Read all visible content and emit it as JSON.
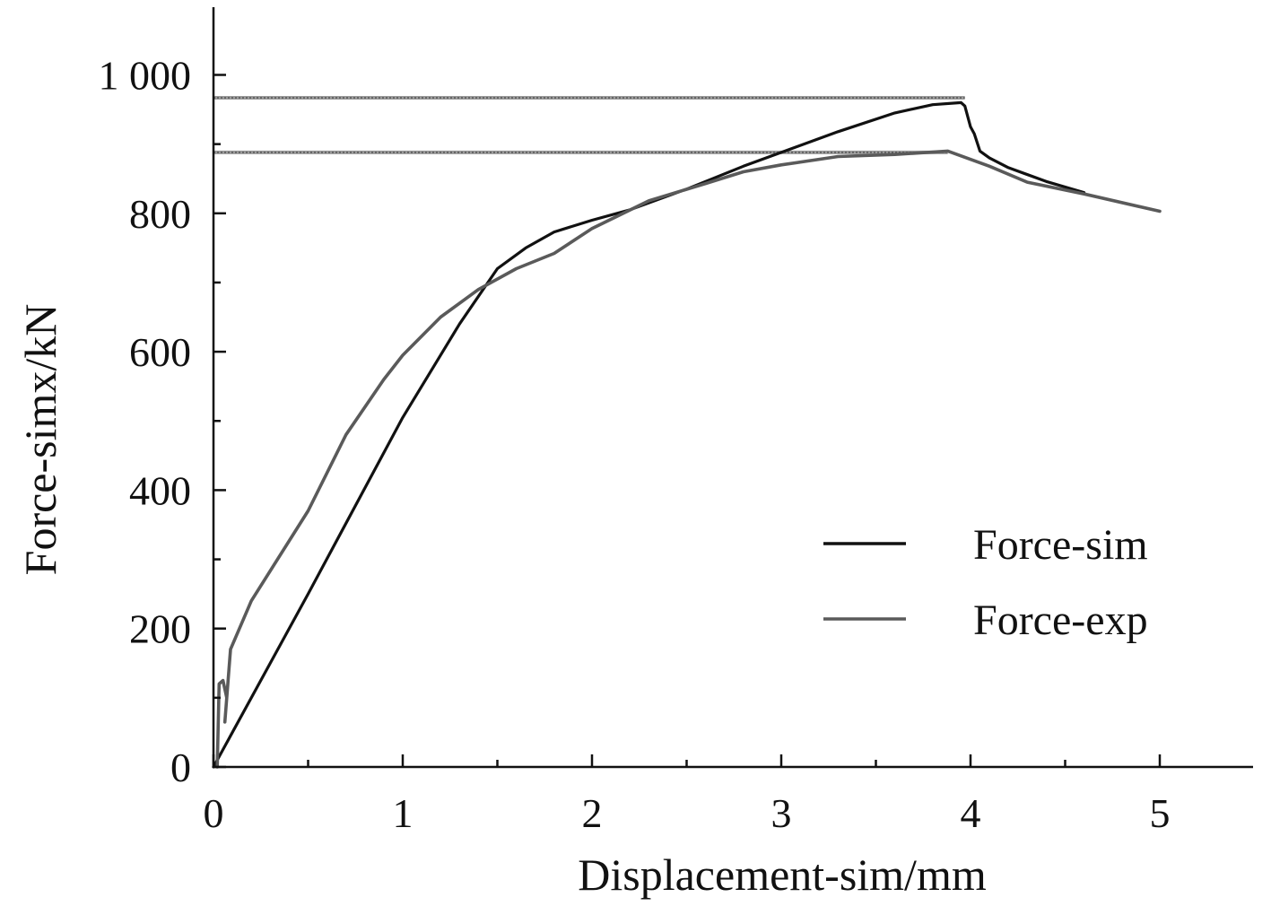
{
  "chart_data": {
    "type": "line",
    "xlabel": "Displacement-sim/mm",
    "ylabel": "Force-simx/kN",
    "xlim": [
      0,
      5.5
    ],
    "ylim": [
      0,
      1100
    ],
    "x_ticks": [
      0,
      1,
      2,
      3,
      4,
      5
    ],
    "x_tick_labels": [
      "0",
      "1",
      "2",
      "3",
      "4",
      "5"
    ],
    "y_ticks": [
      0,
      200,
      400,
      600,
      800,
      1000
    ],
    "y_tick_labels": [
      "0",
      "200",
      "400",
      "600",
      "800",
      "1 000"
    ],
    "grid": false,
    "legend_position": "right",
    "series": [
      {
        "name": "Force-sim",
        "color": "#111111",
        "points": [
          [
            0,
            0
          ],
          [
            0.5,
            250
          ],
          [
            1.0,
            505
          ],
          [
            1.3,
            640
          ],
          [
            1.5,
            720
          ],
          [
            1.65,
            750
          ],
          [
            1.8,
            773
          ],
          [
            2.0,
            790
          ],
          [
            2.2,
            805
          ],
          [
            2.5,
            835
          ],
          [
            2.8,
            868
          ],
          [
            3.0,
            888
          ],
          [
            3.3,
            918
          ],
          [
            3.6,
            945
          ],
          [
            3.8,
            957
          ],
          [
            3.95,
            960
          ],
          [
            3.97,
            955
          ],
          [
            4.0,
            925
          ],
          [
            4.02,
            915
          ],
          [
            4.05,
            890
          ],
          [
            4.1,
            880
          ],
          [
            4.2,
            866
          ],
          [
            4.4,
            846
          ],
          [
            4.6,
            830
          ]
        ]
      },
      {
        "name": "Force-exp",
        "color": "#5a5a5a",
        "points": [
          [
            0.02,
            0
          ],
          [
            0.03,
            120
          ],
          [
            0.05,
            125
          ],
          [
            0.07,
            100
          ],
          [
            0.06,
            65
          ],
          [
            0.09,
            170
          ],
          [
            0.2,
            240
          ],
          [
            0.5,
            370
          ],
          [
            0.7,
            480
          ],
          [
            0.9,
            560
          ],
          [
            1.0,
            595
          ],
          [
            1.2,
            650
          ],
          [
            1.4,
            690
          ],
          [
            1.6,
            720
          ],
          [
            1.8,
            742
          ],
          [
            2.0,
            778
          ],
          [
            2.3,
            818
          ],
          [
            2.6,
            843
          ],
          [
            2.8,
            860
          ],
          [
            3.0,
            870
          ],
          [
            3.3,
            882
          ],
          [
            3.6,
            885
          ],
          [
            3.88,
            890
          ],
          [
            4.1,
            868
          ],
          [
            4.3,
            845
          ],
          [
            4.6,
            828
          ],
          [
            5.0,
            803
          ]
        ]
      }
    ],
    "reference_lines": [
      {
        "y": 967,
        "x_end": 3.97
      },
      {
        "y": 888,
        "x_end": 3.88
      }
    ]
  }
}
